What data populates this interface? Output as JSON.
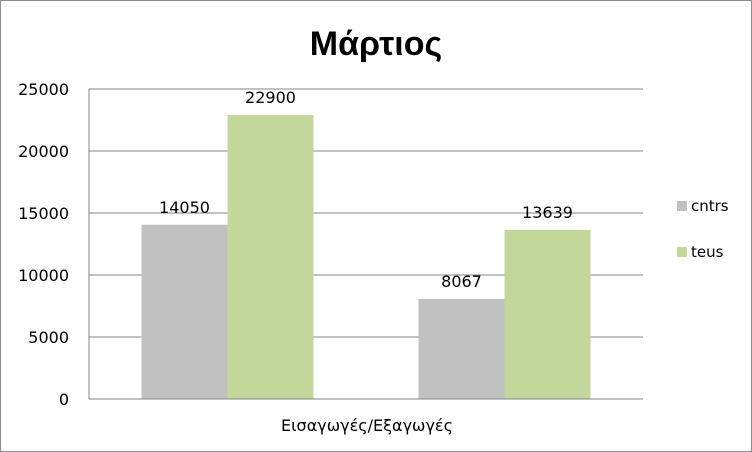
{
  "chart_data": {
    "type": "bar",
    "title": "Μάρτιος",
    "xlabel": "Εισαγωγές/Εξαγωγές",
    "ylabel": "",
    "ylim": [
      0,
      25000
    ],
    "yticks": [
      0,
      5000,
      10000,
      15000,
      20000,
      25000
    ],
    "grid": true,
    "legend_position": "right",
    "categories": [
      "",
      ""
    ],
    "series": [
      {
        "name": "cntrs",
        "color": "#c0c0c0",
        "values": [
          14050,
          8067
        ],
        "labels": [
          "14050",
          "8067"
        ]
      },
      {
        "name": "teus",
        "color": "#c4d79b",
        "values": [
          22900,
          13639
        ],
        "labels": [
          "22900",
          "13639"
        ]
      }
    ]
  }
}
